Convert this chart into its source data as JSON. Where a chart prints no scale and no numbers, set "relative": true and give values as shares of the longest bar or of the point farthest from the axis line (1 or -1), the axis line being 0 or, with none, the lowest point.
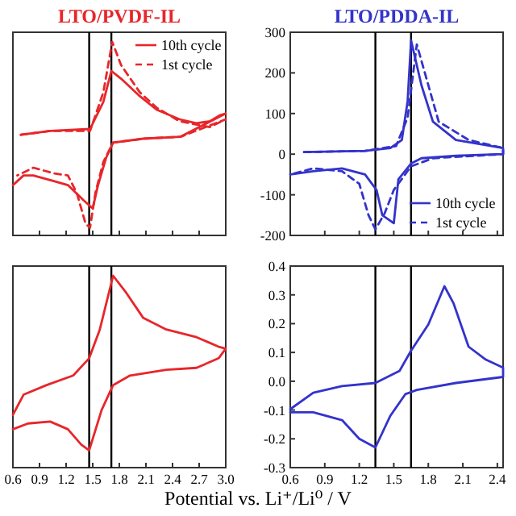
{
  "chart_data": [
    {
      "type": "line",
      "title": "LTO/PVDF-IL",
      "relative": true,
      "xlim": [
        0.6,
        3.0
      ],
      "xticks": [
        0.6,
        0.9,
        1.2,
        1.5,
        1.8,
        2.1,
        2.4,
        2.7,
        3.0
      ],
      "tick_labels": false,
      "legend": "top right",
      "ref_lines": [
        {
          "axis": "x",
          "value": 1.46,
          "color": "#000000"
        },
        {
          "axis": "x",
          "value": 1.71,
          "color": "#000000"
        }
      ],
      "series": [
        {
          "name": "10th cycle",
          "color": "#e8262a",
          "line_style": "solid",
          "x": [
            0.69,
            1.02,
            1.47,
            1.62,
            1.71,
            1.82,
            2.03,
            2.22,
            2.48,
            2.67,
            2.82,
            2.93,
            3.0,
            2.49,
            2.07,
            1.73,
            1.65,
            1.56,
            1.5,
            1.4,
            1.22,
            1.07,
            0.83,
            0.72,
            0.6
          ],
          "values": [
            0.52,
            0.54,
            0.55,
            0.69,
            0.85,
            0.81,
            0.72,
            0.65,
            0.6,
            0.58,
            0.59,
            0.62,
            0.63,
            0.51,
            0.5,
            0.48,
            0.4,
            0.26,
            0.14,
            0.18,
            0.26,
            0.28,
            0.31,
            0.31,
            0.26
          ]
        },
        {
          "name": "1st cycle",
          "color": "#e8262a",
          "line_style": "dashed",
          "x": [
            0.69,
            1.02,
            1.47,
            1.62,
            1.72,
            1.82,
            2.03,
            2.22,
            2.48,
            2.82,
            3.0,
            2.49,
            2.07,
            1.73,
            1.62,
            1.53,
            1.47,
            1.42,
            1.32,
            1.22,
            1.07,
            0.83,
            0.65
          ],
          "values": [
            0.52,
            0.54,
            0.54,
            0.74,
            1.0,
            0.88,
            0.74,
            0.66,
            0.59,
            0.56,
            0.6,
            0.51,
            0.5,
            0.48,
            0.38,
            0.22,
            0.04,
            0.06,
            0.22,
            0.31,
            0.32,
            0.35,
            0.31
          ]
        }
      ]
    },
    {
      "type": "line",
      "title": "LTO/PDDA-IL",
      "xlim": [
        0.6,
        2.45
      ],
      "xticks": [
        0.6,
        0.9,
        1.2,
        1.5,
        1.8,
        2.1,
        2.4
      ],
      "ylim": [
        -200,
        300
      ],
      "yticks": [
        -200,
        -100,
        0,
        100,
        200,
        300
      ],
      "tick_labels": "y",
      "legend": "bottom right",
      "ref_lines": [
        {
          "axis": "x",
          "value": 1.34,
          "color": "#000000"
        },
        {
          "axis": "x",
          "value": 1.65,
          "color": "#000000"
        }
      ],
      "series": [
        {
          "name": "10th cycle",
          "color": "#3333cc",
          "line_style": "solid",
          "x": [
            0.72,
            1.25,
            1.47,
            1.57,
            1.62,
            1.65,
            1.74,
            1.84,
            2.04,
            2.45,
            2.45,
            2.04,
            1.74,
            1.65,
            1.54,
            1.5,
            1.4,
            1.35,
            1.25,
            1.05,
            0.8,
            0.6
          ],
          "values": [
            5,
            8,
            15,
            35,
            130,
            280,
            170,
            80,
            35,
            15,
            0,
            -4,
            -10,
            -23,
            -62,
            -170,
            -150,
            -88,
            -50,
            -35,
            -42,
            -50
          ]
        },
        {
          "name": "1st cycle",
          "color": "#3333cc",
          "line_style": "dashed",
          "x": [
            0.72,
            1.25,
            1.52,
            1.62,
            1.7,
            1.77,
            1.89,
            2.15,
            2.45,
            2.45,
            1.84,
            1.65,
            1.5,
            1.42,
            1.34,
            1.28,
            1.2,
            1.05,
            0.8,
            0.6
          ],
          "values": [
            5,
            8,
            20,
            90,
            270,
            200,
            80,
            35,
            15,
            0,
            -10,
            -30,
            -88,
            -146,
            -185,
            -150,
            -73,
            -42,
            -35,
            -50
          ]
        }
      ]
    },
    {
      "type": "line",
      "relative": true,
      "xlim": [
        0.6,
        3.0
      ],
      "xticks": [
        0.6,
        0.9,
        1.2,
        1.5,
        1.8,
        2.1,
        2.4,
        2.7,
        {
          "value": 3,
          "label": "3.0"
        }
      ],
      "tick_labels": "x",
      "xlabel": "Potential vs. Li⁺/Li⁰ / V",
      "ref_lines": [
        {
          "axis": "x",
          "value": 1.46,
          "color": "#000000"
        },
        {
          "axis": "x",
          "value": 1.71,
          "color": "#000000"
        }
      ],
      "series": [
        {
          "color": "#e8262a",
          "line_style": "solid",
          "x": [
            0.6,
            0.72,
            0.98,
            1.28,
            1.46,
            1.58,
            1.73,
            1.88,
            2.07,
            2.33,
            2.67,
            2.92,
            3.0,
            2.92,
            2.67,
            2.33,
            1.92,
            1.73,
            1.6,
            1.46,
            1.37,
            1.22,
            1.02,
            0.77,
            0.6
          ],
          "values": [
            0.275,
            0.38,
            0.43,
            0.48,
            0.57,
            0.72,
            1.0,
            0.91,
            0.78,
            0.72,
            0.68,
            0.63,
            0.62,
            0.57,
            0.52,
            0.51,
            0.48,
            0.43,
            0.3,
            0.09,
            0.12,
            0.2,
            0.24,
            0.23,
            0.2
          ]
        }
      ]
    },
    {
      "type": "line",
      "xlim": [
        0.6,
        2.45
      ],
      "xticks": [
        0.6,
        0.9,
        1.2,
        1.5,
        1.8,
        2.1,
        2.4
      ],
      "ylim": [
        -0.3,
        0.4
      ],
      "yticks": [
        {
          "value": -0.3,
          "label": "-0.3"
        },
        {
          "value": -0.2,
          "label": "-0.2"
        },
        {
          "value": -0.1,
          "label": "-0.1"
        },
        {
          "value": 0,
          "label": "0.0"
        },
        {
          "value": 0.1,
          "label": "0.1"
        },
        {
          "value": 0.2,
          "label": "0.2"
        },
        {
          "value": 0.3,
          "label": "0.3"
        },
        {
          "value": 0.4,
          "label": "0.4"
        }
      ],
      "ref_lines": [
        {
          "axis": "x",
          "value": 1.34,
          "color": "#000000"
        },
        {
          "axis": "x",
          "value": 1.65,
          "color": "#000000"
        }
      ],
      "series": [
        {
          "color": "#3333cc",
          "line_style": "solid",
          "x": [
            0.6,
            0.8,
            1.05,
            1.34,
            1.55,
            1.65,
            1.8,
            1.94,
            2.02,
            2.15,
            2.3,
            2.45,
            2.45,
            2.04,
            1.7,
            1.6,
            1.47,
            1.34,
            1.2,
            1.05,
            0.8,
            0.6
          ],
          "values": [
            -0.097,
            -0.04,
            -0.017,
            -0.006,
            0.036,
            0.106,
            0.197,
            0.33,
            0.27,
            0.12,
            0.075,
            0.047,
            0.015,
            -0.006,
            -0.03,
            -0.045,
            -0.12,
            -0.23,
            -0.2,
            -0.135,
            -0.108,
            -0.108
          ]
        }
      ]
    }
  ]
}
